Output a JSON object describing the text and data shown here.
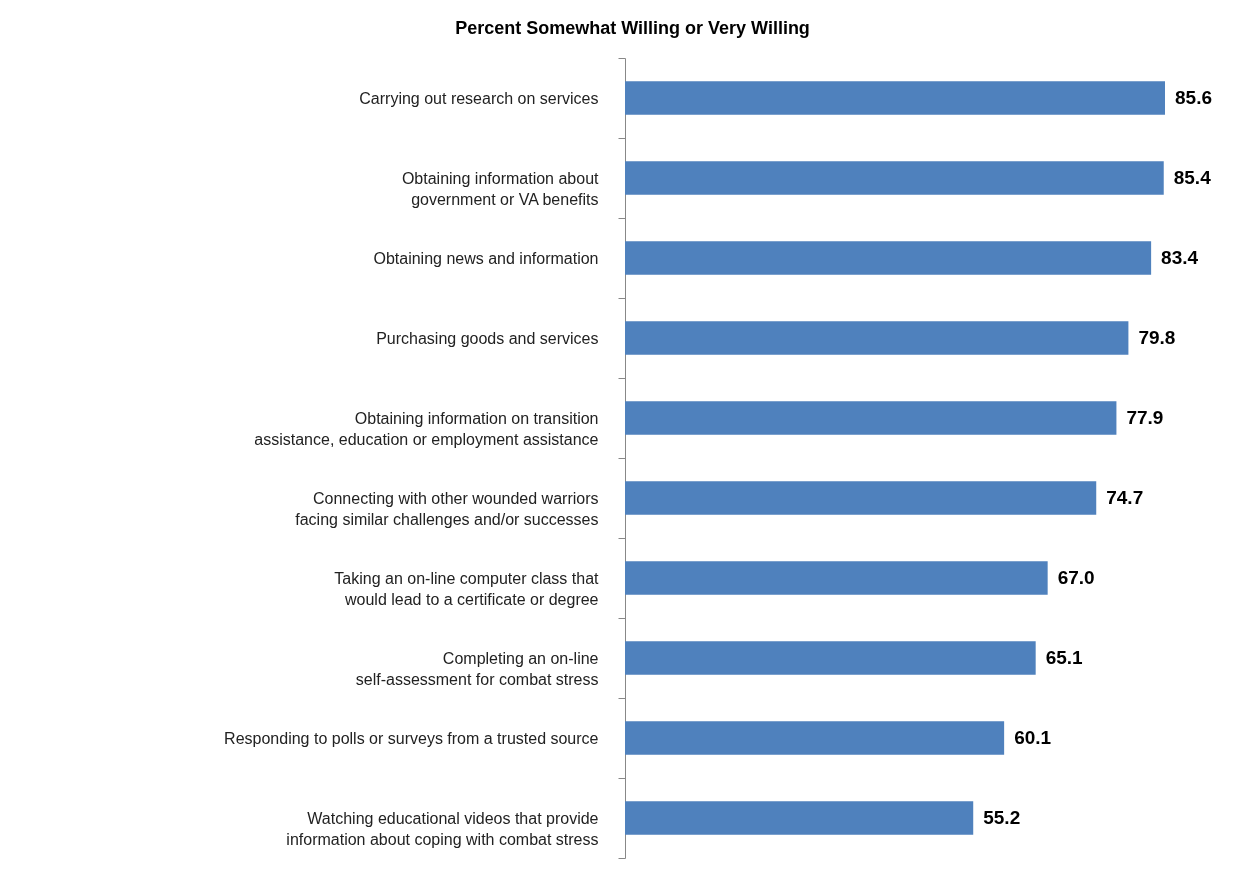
{
  "chart_data": {
    "type": "bar",
    "orientation": "horizontal",
    "title": "Percent Somewhat Willing or Very Willing",
    "categories": [
      "Carrying out research on services",
      "Obtaining information about government or VA benefits",
      "Obtaining news and information",
      "Purchasing goods and services",
      "Obtaining information on transition assistance, education or employment assistance",
      "Connecting with other wounded warriors facing similar challenges and/or successes",
      "Taking an on-line computer class that would lead to a certificate or degree",
      "Completing an on-line self-assessment for combat stress",
      "Responding to polls or surveys from a trusted source",
      "Watching educational videos that provide information about coping with combat stress"
    ],
    "values": [
      85.6,
      85.4,
      83.4,
      79.8,
      77.9,
      74.7,
      67.0,
      65.1,
      60.1,
      55.2
    ],
    "value_labels": [
      "85.6",
      "85.4",
      "83.4",
      "79.8",
      "77.9",
      "74.7",
      "67.0",
      "65.1",
      "60.1",
      "55.2"
    ],
    "color": "#4f81bd"
  }
}
